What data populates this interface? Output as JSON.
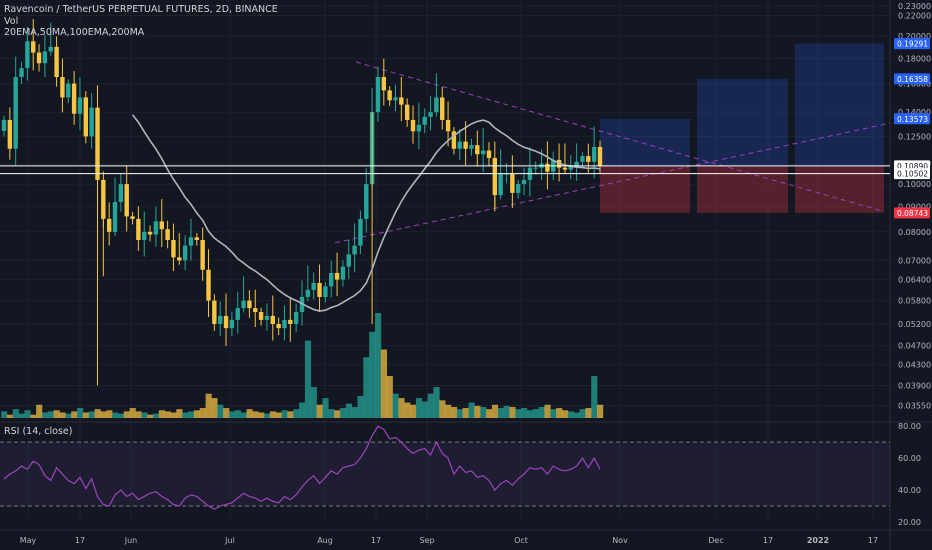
{
  "header": {
    "title": "Ravencoin / TetherUS PERPETUAL FUTURES, 2D, BINANCE",
    "volume_label": "Vol",
    "ma_label": "20EMA,50MA,100EMA,200MA",
    "rsi_label": "RSI (14, close)"
  },
  "colors": {
    "background": "#131722",
    "bull": "#26a69a",
    "bear": "#f7c544",
    "ma_line": "#b2b5be",
    "trend_dashed": "#9c42b8",
    "rsi_line": "#9c46b9",
    "target_box": "#2962ff",
    "stop_box": "#f23645"
  },
  "chart_data": [
    {
      "type": "candlestick",
      "title": "Ravencoin / TetherUS PERPETUAL FUTURES, 2D, BINANCE",
      "price_scale": "log",
      "ylim": [
        0.0335,
        0.23
      ],
      "x_tick_labels": [
        "May",
        "17",
        "Jun",
        "Jul",
        "Aug",
        "17",
        "Sep",
        "Oct",
        "Nov",
        "Dec",
        "17",
        "2022",
        "17"
      ],
      "y_tick_labels": [
        "0.23000",
        "0.22000",
        "0.20000",
        "0.18000",
        "0.16000",
        "0.14000",
        "0.12500",
        "0.11000",
        "0.10000",
        "0.09000",
        "0.08000",
        "0.07000",
        "0.06400",
        "0.05800",
        "0.05200",
        "0.04700",
        "0.04300",
        "0.03900",
        "0.03550"
      ],
      "y_tick_values": [
        0.23,
        0.22,
        0.2,
        0.18,
        0.16,
        0.14,
        0.125,
        0.11,
        0.1,
        0.09,
        0.08,
        0.07,
        0.064,
        0.058,
        0.052,
        0.047,
        0.043,
        0.039,
        0.0355
      ],
      "highlighted_prices": [
        {
          "label": "0.19291",
          "value": 0.19291,
          "kind": "target"
        },
        {
          "label": "0.16358",
          "value": 0.16358,
          "kind": "target"
        },
        {
          "label": "0.13573",
          "value": 0.13573,
          "kind": "target"
        },
        {
          "label": "0.10890",
          "value": 0.1089,
          "kind": "level"
        },
        {
          "label": "0.10502",
          "value": 0.10502,
          "kind": "level"
        },
        {
          "label": "0.08743",
          "value": 0.08743,
          "kind": "stop"
        }
      ],
      "closes": [
        0.135,
        0.118,
        0.165,
        0.172,
        0.195,
        0.185,
        0.176,
        0.186,
        0.19,
        0.165,
        0.15,
        0.16,
        0.139,
        0.15,
        0.125,
        0.143,
        0.102,
        0.085,
        0.08,
        0.092,
        0.1,
        0.086,
        0.085,
        0.077,
        0.08,
        0.079,
        0.084,
        0.081,
        0.077,
        0.071,
        0.07,
        0.075,
        0.078,
        0.077,
        0.067,
        0.058,
        0.052,
        0.054,
        0.051,
        0.053,
        0.056,
        0.058,
        0.056,
        0.055,
        0.053,
        0.054,
        0.052,
        0.051,
        0.053,
        0.052,
        0.055,
        0.059,
        0.061,
        0.063,
        0.059,
        0.062,
        0.066,
        0.064,
        0.068,
        0.072,
        0.075,
        0.085,
        0.1,
        0.14,
        0.165,
        0.155,
        0.148,
        0.15,
        0.145,
        0.135,
        0.128,
        0.132,
        0.137,
        0.14,
        0.15,
        0.135,
        0.128,
        0.118,
        0.122,
        0.118,
        0.12,
        0.115,
        0.117,
        0.113,
        0.095,
        0.105,
        0.105,
        0.096,
        0.1,
        0.102,
        0.108,
        0.108,
        0.11,
        0.106,
        0.112,
        0.108,
        0.107,
        0.109,
        0.111,
        0.114,
        0.111,
        0.119,
        0.1089
      ],
      "volume": [
        6,
        3,
        8,
        4,
        7,
        3,
        12,
        5,
        6,
        7,
        5,
        4,
        6,
        9,
        5,
        6,
        8,
        6,
        7,
        5,
        4,
        6,
        9,
        6,
        5,
        3,
        4,
        7,
        6,
        5,
        8,
        5,
        6,
        7,
        9,
        22,
        18,
        12,
        9,
        6,
        7,
        5,
        8,
        6,
        5,
        4,
        6,
        5,
        7,
        6,
        8,
        14,
        70,
        28,
        12,
        18,
        8,
        7,
        9,
        13,
        10,
        20,
        55,
        78,
        95,
        62,
        38,
        22,
        18,
        14,
        12,
        18,
        15,
        22,
        28,
        16,
        12,
        10,
        8,
        9,
        14,
        11,
        10,
        8,
        12,
        9,
        11,
        10,
        8,
        9,
        7,
        8,
        10,
        12,
        8,
        9,
        7,
        6,
        5,
        8,
        9,
        38,
        12
      ]
    },
    {
      "type": "line",
      "title": "RSI (14, close)",
      "ylim": [
        15,
        82
      ],
      "y_tick_labels": [
        "80.00",
        "60.00",
        "40.00",
        "20.00"
      ],
      "y_tick_values": [
        80,
        60,
        40,
        20
      ],
      "band": [
        70,
        30
      ],
      "values": [
        47,
        50,
        52,
        55,
        53,
        58,
        56,
        49,
        46,
        54,
        50,
        46,
        44,
        48,
        41,
        47,
        36,
        31,
        30,
        37,
        40,
        36,
        38,
        34,
        36,
        38,
        39,
        36,
        34,
        31,
        30,
        35,
        37,
        36,
        33,
        30,
        28,
        30,
        31,
        32,
        35,
        38,
        36,
        35,
        33,
        35,
        33,
        32,
        36,
        34,
        37,
        42,
        46,
        49,
        44,
        48,
        52,
        50,
        54,
        55,
        56,
        60,
        66,
        74,
        80,
        78,
        72,
        73,
        70,
        66,
        63,
        65,
        66,
        62,
        70,
        63,
        60,
        50,
        55,
        51,
        52,
        48,
        49,
        46,
        40,
        44,
        46,
        43,
        47,
        50,
        54,
        53,
        54,
        50,
        55,
        53,
        52,
        53,
        55,
        60,
        54,
        60,
        53
      ]
    }
  ]
}
